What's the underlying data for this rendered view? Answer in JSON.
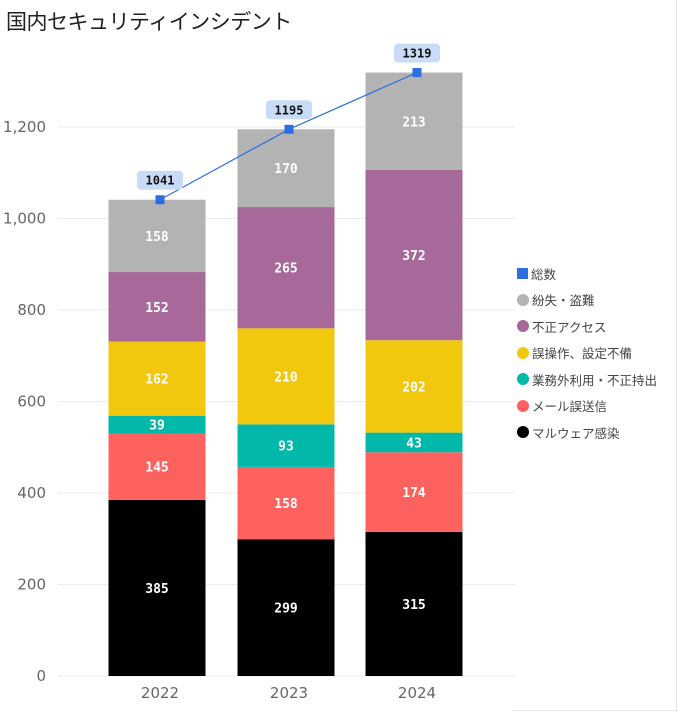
{
  "chart_data": {
    "type": "bar",
    "stacked": true,
    "title": "国内セキュリティインシデント",
    "xlabel": "",
    "ylabel": "",
    "categories": [
      "2022",
      "2023",
      "2024"
    ],
    "ylim": [
      0,
      1320
    ],
    "yticks": [
      0,
      200,
      400,
      600,
      800,
      1000,
      1200
    ],
    "ytick_labels": [
      "0",
      "200",
      "400",
      "600",
      "800",
      "1,000",
      "1,200"
    ],
    "grid": true,
    "legend_position": "right",
    "series": [
      {
        "name": "マルウェア感染",
        "color": "#000000",
        "values": [
          385,
          299,
          315
        ]
      },
      {
        "name": "メール誤送信",
        "color": "#fd625e",
        "values": [
          145,
          158,
          174
        ]
      },
      {
        "name": "業務外利用・不正持出",
        "color": "#01b8aa",
        "values": [
          39,
          93,
          43
        ]
      },
      {
        "name": "誤操作、設定不備",
        "color": "#f2c80f",
        "values": [
          162,
          210,
          202
        ]
      },
      {
        "name": "不正アクセス",
        "color": "#a66999",
        "values": [
          152,
          265,
          372
        ]
      },
      {
        "name": "紛失・盗難",
        "color": "#b3b3b3",
        "values": [
          158,
          170,
          213
        ]
      }
    ],
    "line_series": {
      "name": "総数",
      "color": "#2d6fe0",
      "label_bg": "#c9dcf7",
      "values": [
        1041,
        1195,
        1319
      ]
    },
    "legend_order": [
      {
        "name": "総数",
        "color": "#2d6fe0",
        "marker": "square"
      },
      {
        "name": "紛失・盗難",
        "color": "#b3b3b3",
        "marker": "circle"
      },
      {
        "name": "不正アクセス",
        "color": "#a66999",
        "marker": "circle"
      },
      {
        "name": "誤操作、設定不備",
        "color": "#f2c80f",
        "marker": "circle"
      },
      {
        "name": "業務外利用・不正持出",
        "color": "#01b8aa",
        "marker": "circle"
      },
      {
        "name": "メール誤送信",
        "color": "#fd625e",
        "marker": "circle"
      },
      {
        "name": "マルウェア感染",
        "color": "#000000",
        "marker": "circle"
      }
    ]
  }
}
